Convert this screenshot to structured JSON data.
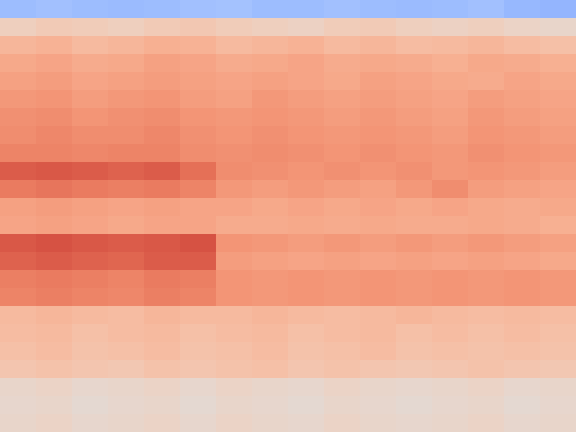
{
  "chart_data": {
    "type": "heatmap",
    "tick_labels": false,
    "clim": [
      0,
      1
    ],
    "cells": [
      [
        0.3,
        0.31,
        0.3,
        0.29,
        0.3,
        0.31,
        0.32,
        0.3,
        0.3,
        0.31,
        0.3,
        0.29,
        0.3,
        0.31,
        0.28,
        0.27
      ],
      [
        0.58,
        0.6,
        0.59,
        0.58,
        0.6,
        0.61,
        0.59,
        0.58,
        0.57,
        0.59,
        0.6,
        0.58,
        0.57,
        0.58,
        0.56,
        0.55
      ],
      [
        0.67,
        0.68,
        0.66,
        0.67,
        0.69,
        0.68,
        0.66,
        0.67,
        0.68,
        0.66,
        0.67,
        0.65,
        0.66,
        0.67,
        0.65,
        0.64
      ],
      [
        0.71,
        0.72,
        0.7,
        0.71,
        0.73,
        0.72,
        0.7,
        0.71,
        0.72,
        0.7,
        0.71,
        0.7,
        0.69,
        0.71,
        0.7,
        0.69
      ],
      [
        0.73,
        0.74,
        0.72,
        0.73,
        0.74,
        0.73,
        0.72,
        0.73,
        0.72,
        0.71,
        0.73,
        0.72,
        0.71,
        0.7,
        0.72,
        0.71
      ],
      [
        0.75,
        0.76,
        0.74,
        0.75,
        0.76,
        0.74,
        0.73,
        0.75,
        0.74,
        0.73,
        0.74,
        0.73,
        0.72,
        0.74,
        0.73,
        0.72
      ],
      [
        0.77,
        0.78,
        0.76,
        0.77,
        0.78,
        0.76,
        0.75,
        0.76,
        0.75,
        0.74,
        0.75,
        0.74,
        0.73,
        0.75,
        0.74,
        0.73
      ],
      [
        0.78,
        0.79,
        0.78,
        0.78,
        0.79,
        0.77,
        0.76,
        0.77,
        0.76,
        0.75,
        0.76,
        0.75,
        0.74,
        0.76,
        0.75,
        0.74
      ],
      [
        0.8,
        0.8,
        0.79,
        0.8,
        0.8,
        0.78,
        0.77,
        0.78,
        0.77,
        0.76,
        0.77,
        0.76,
        0.75,
        0.77,
        0.76,
        0.75
      ],
      [
        0.88,
        0.89,
        0.88,
        0.87,
        0.88,
        0.84,
        0.78,
        0.77,
        0.76,
        0.77,
        0.76,
        0.77,
        0.75,
        0.76,
        0.75,
        0.74
      ],
      [
        0.82,
        0.83,
        0.82,
        0.81,
        0.82,
        0.8,
        0.75,
        0.74,
        0.75,
        0.74,
        0.73,
        0.75,
        0.78,
        0.74,
        0.73,
        0.72
      ],
      [
        0.73,
        0.74,
        0.73,
        0.72,
        0.73,
        0.72,
        0.72,
        0.71,
        0.72,
        0.71,
        0.72,
        0.71,
        0.72,
        0.71,
        0.7,
        0.71
      ],
      [
        0.72,
        0.73,
        0.72,
        0.71,
        0.72,
        0.72,
        0.7,
        0.7,
        0.71,
        0.7,
        0.71,
        0.7,
        0.7,
        0.71,
        0.7,
        0.69
      ],
      [
        0.89,
        0.9,
        0.89,
        0.88,
        0.89,
        0.9,
        0.76,
        0.75,
        0.74,
        0.75,
        0.74,
        0.75,
        0.74,
        0.75,
        0.74,
        0.73
      ],
      [
        0.87,
        0.88,
        0.87,
        0.86,
        0.88,
        0.88,
        0.74,
        0.73,
        0.72,
        0.73,
        0.72,
        0.73,
        0.72,
        0.73,
        0.72,
        0.71
      ],
      [
        0.81,
        0.82,
        0.81,
        0.8,
        0.82,
        0.81,
        0.76,
        0.75,
        0.76,
        0.75,
        0.76,
        0.75,
        0.76,
        0.75,
        0.76,
        0.75
      ],
      [
        0.8,
        0.81,
        0.8,
        0.79,
        0.81,
        0.8,
        0.76,
        0.75,
        0.76,
        0.75,
        0.76,
        0.75,
        0.76,
        0.75,
        0.76,
        0.75
      ],
      [
        0.66,
        0.67,
        0.66,
        0.65,
        0.67,
        0.66,
        0.66,
        0.67,
        0.66,
        0.65,
        0.66,
        0.67,
        0.66,
        0.65,
        0.66,
        0.65
      ],
      [
        0.65,
        0.66,
        0.64,
        0.65,
        0.66,
        0.64,
        0.65,
        0.66,
        0.64,
        0.65,
        0.66,
        0.64,
        0.65,
        0.64,
        0.65,
        0.64
      ],
      [
        0.64,
        0.65,
        0.63,
        0.64,
        0.65,
        0.63,
        0.64,
        0.65,
        0.63,
        0.64,
        0.65,
        0.63,
        0.64,
        0.63,
        0.64,
        0.63
      ],
      [
        0.62,
        0.63,
        0.62,
        0.61,
        0.63,
        0.62,
        0.63,
        0.64,
        0.62,
        0.63,
        0.62,
        0.61,
        0.62,
        0.63,
        0.62,
        0.61
      ],
      [
        0.55,
        0.56,
        0.54,
        0.55,
        0.56,
        0.54,
        0.56,
        0.55,
        0.54,
        0.56,
        0.55,
        0.54,
        0.55,
        0.56,
        0.54,
        0.55
      ],
      [
        0.54,
        0.55,
        0.53,
        0.54,
        0.55,
        0.53,
        0.55,
        0.54,
        0.53,
        0.55,
        0.54,
        0.53,
        0.54,
        0.55,
        0.53,
        0.54
      ],
      [
        0.55,
        0.56,
        0.54,
        0.55,
        0.56,
        0.54,
        0.56,
        0.55,
        0.54,
        0.56,
        0.55,
        0.54,
        0.55,
        0.56,
        0.54,
        0.55
      ]
    ]
  }
}
